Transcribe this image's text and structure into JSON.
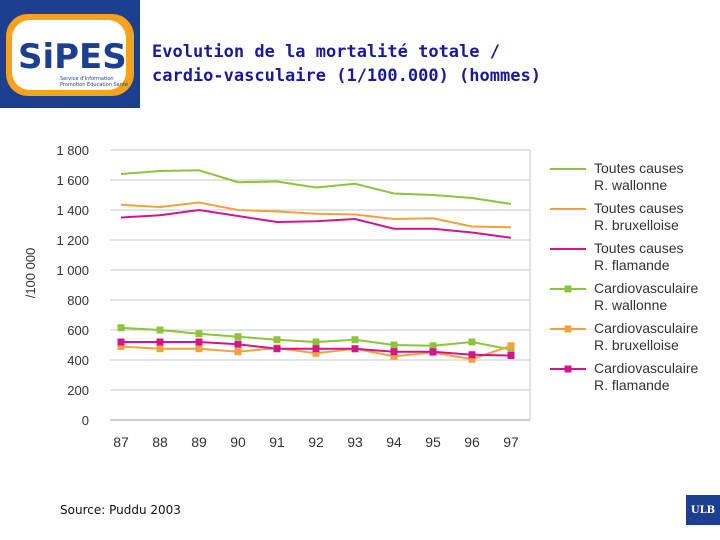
{
  "title_line1": "Evolution de la mortalité totale /",
  "title_line2": "cardio-vasculaire (1/100.000) (hommes)",
  "logo": {
    "name": "SiPES",
    "sub1": "Service d'Information",
    "sub2": "Promotion Education Santé"
  },
  "source": "Source: Puddu 2003",
  "ulb_label": "ULB",
  "colors": {
    "green": "#8cc43c",
    "orange": "#f0a23c",
    "magenta": "#d4148c",
    "grid": "#c8c8c8",
    "title": "#1a1a99",
    "logo_blue": "#1d3f8f"
  },
  "chart_data": {
    "type": "line",
    "title": "Evolution de la mortalité totale / cardio-vasculaire (1/100.000) (hommes)",
    "ylabel": "/100 000",
    "xlabel": "",
    "categories": [
      "87",
      "88",
      "89",
      "90",
      "91",
      "92",
      "93",
      "94",
      "95",
      "96",
      "97"
    ],
    "ylim": [
      0,
      1800
    ],
    "yticks": [
      0,
      200,
      400,
      600,
      800,
      1000,
      1200,
      1400,
      1600,
      1800
    ],
    "ytick_labels": [
      "0",
      "200",
      "400",
      "600",
      "800",
      "1 000",
      "1 200",
      "1 400",
      "1 600",
      "1 800"
    ],
    "grid": true,
    "legend_position": "right",
    "series": [
      {
        "name_line1": "Toutes causes",
        "name_line2": "R. wallonne",
        "color": "#8cc43c",
        "marker": "none",
        "values": [
          1640,
          1660,
          1665,
          1585,
          1590,
          1550,
          1575,
          1510,
          1500,
          1480,
          1440
        ]
      },
      {
        "name_line1": "Toutes causes",
        "name_line2": "R. bruxelloise",
        "color": "#f0a23c",
        "marker": "none",
        "values": [
          1435,
          1420,
          1450,
          1400,
          1390,
          1375,
          1370,
          1340,
          1345,
          1290,
          1285
        ]
      },
      {
        "name_line1": "Toutes causes",
        "name_line2": "R. flamande",
        "color": "#d4148c",
        "marker": "none",
        "values": [
          1350,
          1365,
          1400,
          1360,
          1320,
          1325,
          1340,
          1275,
          1275,
          1250,
          1215
        ]
      },
      {
        "name_line1": "Cardiovasculaire",
        "name_line2": "R. wallonne",
        "color": "#8cc43c",
        "marker": "square",
        "values": [
          615,
          600,
          575,
          555,
          535,
          520,
          535,
          500,
          495,
          520,
          470
        ]
      },
      {
        "name_line1": "Cardiovasculaire",
        "name_line2": "R. bruxelloise",
        "color": "#f0a23c",
        "marker": "square",
        "values": [
          490,
          475,
          475,
          455,
          480,
          445,
          475,
          425,
          450,
          405,
          495
        ]
      },
      {
        "name_line1": "Cardiovasculaire",
        "name_line2": "R. flamande",
        "color": "#d4148c",
        "marker": "square",
        "values": [
          520,
          520,
          520,
          505,
          475,
          475,
          475,
          455,
          455,
          435,
          430
        ]
      }
    ]
  }
}
